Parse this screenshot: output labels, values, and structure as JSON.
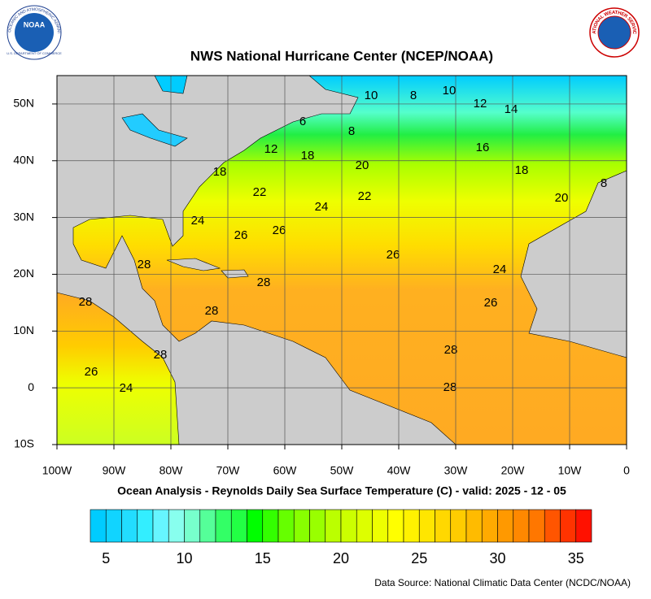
{
  "header": {
    "title": "NWS National Hurricane Center (NCEP/NOAA)",
    "noaa_logo": "NOAA",
    "noaa_ring": "NATIONAL OCEANIC AND ATMOSPHERIC ADMINISTRATION",
    "noaa_ring_bottom": "U.S. DEPARTMENT OF COMMERCE",
    "nws_ring": "NATIONAL WEATHER SERVICE"
  },
  "map": {
    "xlim": [
      -100,
      0
    ],
    "ylim": [
      -10,
      55
    ],
    "xticks": [
      {
        "value": -100,
        "label": "100W"
      },
      {
        "value": -90,
        "label": "90W"
      },
      {
        "value": -80,
        "label": "80W"
      },
      {
        "value": -70,
        "label": "70W"
      },
      {
        "value": -60,
        "label": "60W"
      },
      {
        "value": -50,
        "label": "50W"
      },
      {
        "value": -40,
        "label": "40W"
      },
      {
        "value": -30,
        "label": "30W"
      },
      {
        "value": -20,
        "label": "20W"
      },
      {
        "value": -10,
        "label": "10W"
      },
      0
    ],
    "yticks": [
      {
        "value": -10,
        "label": "10S"
      },
      0,
      {
        "value": 10,
        "label": "10N"
      },
      {
        "value": 20,
        "label": "20N"
      },
      {
        "value": 30,
        "label": "30N"
      },
      {
        "value": 40,
        "label": "40N"
      },
      {
        "value": 50,
        "label": "50N"
      }
    ],
    "grid": true,
    "contour_labels": [
      "10",
      "8",
      "10",
      "12",
      "14",
      "6",
      "8",
      "12",
      "18",
      "16",
      "20",
      "18",
      "18",
      "22",
      "22",
      "24",
      "20",
      "8",
      "24",
      "26",
      "26",
      "26",
      "24",
      "28",
      "28",
      "26",
      "28",
      "28",
      "28",
      "28",
      "26",
      "24",
      "28"
    ]
  },
  "caption": "Ocean Analysis - Reynolds Daily Sea Surface Temperature (C) - valid: 2025 - 12 - 05",
  "colorbar": {
    "range": [
      4,
      36
    ],
    "ticks": [
      5,
      10,
      15,
      20,
      25,
      30,
      35
    ],
    "colors": [
      "#00ccff",
      "#11d4ff",
      "#22ddff",
      "#33eeff",
      "#66f5ff",
      "#88ffee",
      "#77ffcc",
      "#55ff99",
      "#33ff66",
      "#22ff44",
      "#00ff00",
      "#33ff00",
      "#66ff00",
      "#88ff00",
      "#99ff00",
      "#bbff00",
      "#ccff00",
      "#ddff00",
      "#eeff00",
      "#ffff00",
      "#fff200",
      "#ffe600",
      "#ffd800",
      "#ffcc00",
      "#ffbb00",
      "#ffaa00",
      "#ff9900",
      "#ff8800",
      "#ff7700",
      "#ff5500",
      "#ff3300",
      "#ff1100"
    ]
  },
  "source": "Data Source: National Climatic Data Center (NCDC/NOAA)"
}
